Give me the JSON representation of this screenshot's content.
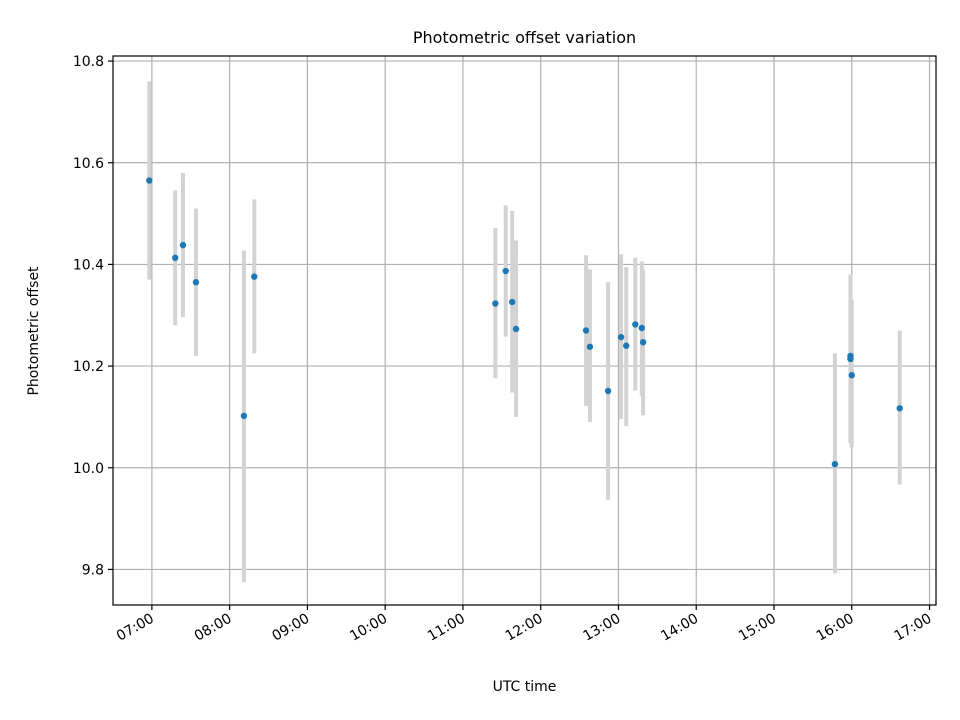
{
  "chart_data": {
    "type": "scatter",
    "title": "Photometric offset variation",
    "xlabel": "UTC time",
    "ylabel": "Photometric offset",
    "xlim": [
      "06:30",
      "17:05"
    ],
    "ylim": [
      9.73,
      10.81
    ],
    "grid": true,
    "x_ticks": [
      "07:00",
      "08:00",
      "09:00",
      "10:00",
      "11:00",
      "12:00",
      "13:00",
      "14:00",
      "15:00",
      "16:00",
      "17:00"
    ],
    "y_ticks": [
      "9.8",
      "10.0",
      "10.2",
      "10.4",
      "10.6",
      "10.8"
    ],
    "series": [
      {
        "style": "errorbar",
        "marker_color": "#1f77b4",
        "errorbar_color": "#d3d3d3",
        "points": [
          {
            "x": "06:58",
            "y": 10.565,
            "ylow": 10.37,
            "yhigh": 10.76
          },
          {
            "x": "07:18",
            "y": 10.413,
            "ylow": 10.28,
            "yhigh": 10.546
          },
          {
            "x": "07:24",
            "y": 10.438,
            "ylow": 10.296,
            "yhigh": 10.58
          },
          {
            "x": "07:34",
            "y": 10.365,
            "ylow": 10.22,
            "yhigh": 10.51
          },
          {
            "x": "08:11",
            "y": 10.102,
            "ylow": 9.775,
            "yhigh": 10.427
          },
          {
            "x": "08:19",
            "y": 10.376,
            "ylow": 10.225,
            "yhigh": 10.528
          },
          {
            "x": "11:25",
            "y": 10.323,
            "ylow": 10.176,
            "yhigh": 10.472
          },
          {
            "x": "11:33",
            "y": 10.387,
            "ylow": 10.258,
            "yhigh": 10.516
          },
          {
            "x": "11:38",
            "y": 10.326,
            "ylow": 10.148,
            "yhigh": 10.505
          },
          {
            "x": "11:41",
            "y": 10.273,
            "ylow": 10.1,
            "yhigh": 10.447
          },
          {
            "x": "12:35",
            "y": 10.27,
            "ylow": 10.122,
            "yhigh": 10.418
          },
          {
            "x": "12:38",
            "y": 10.238,
            "ylow": 10.09,
            "yhigh": 10.39
          },
          {
            "x": "12:52",
            "y": 10.151,
            "ylow": 9.937,
            "yhigh": 10.365
          },
          {
            "x": "13:02",
            "y": 10.257,
            "ylow": 10.096,
            "yhigh": 10.42
          },
          {
            "x": "13:06",
            "y": 10.24,
            "ylow": 10.082,
            "yhigh": 10.395
          },
          {
            "x": "13:13",
            "y": 10.282,
            "ylow": 10.152,
            "yhigh": 10.413
          },
          {
            "x": "13:18",
            "y": 10.275,
            "ylow": 10.142,
            "yhigh": 10.406
          },
          {
            "x": "13:19",
            "y": 10.247,
            "ylow": 10.103,
            "yhigh": 10.39
          },
          {
            "x": "15:47",
            "y": 10.007,
            "ylow": 9.792,
            "yhigh": 10.225
          },
          {
            "x": "15:59",
            "y": 10.214,
            "ylow": 10.048,
            "yhigh": 10.38
          },
          {
            "x": "15:59",
            "y": 10.22,
            "ylow": 10.06,
            "yhigh": 10.38
          },
          {
            "x": "16:00",
            "y": 10.182,
            "ylow": 10.04,
            "yhigh": 10.33
          },
          {
            "x": "16:37",
            "y": 10.117,
            "ylow": 9.967,
            "yhigh": 10.27
          }
        ]
      }
    ]
  }
}
